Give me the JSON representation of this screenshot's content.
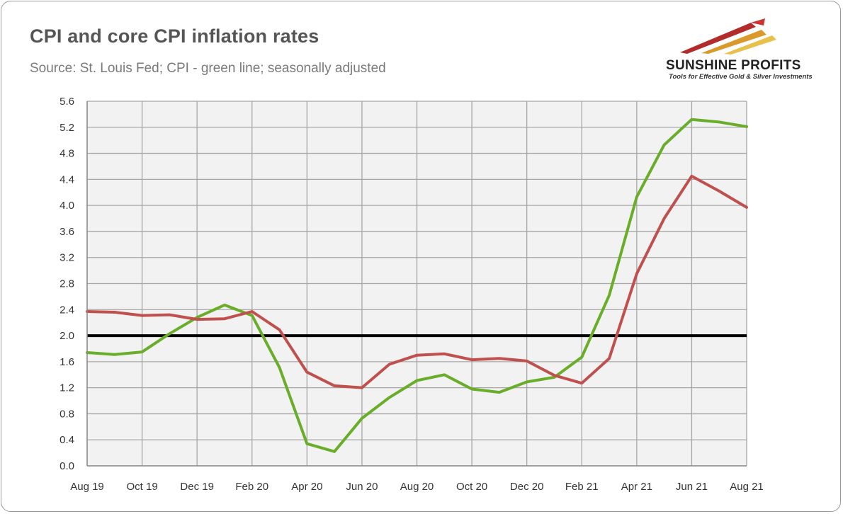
{
  "header": {
    "title": "CPI and core CPI inflation rates",
    "subtitle": "Source: St. Louis Fed; CPI - green line; seasonally adjusted"
  },
  "logo": {
    "name": "SUNSHINE PROFITS",
    "tagline": "Tools for Effective Gold & Silver Investments"
  },
  "chart_data": {
    "type": "line",
    "title": "CPI and core CPI inflation rates",
    "subtitle": "Source: St. Louis Fed; CPI - green line; seasonally adjusted",
    "xlabel": "",
    "ylabel": "",
    "x": [
      "Aug 19",
      "Sep 19",
      "Oct 19",
      "Nov 19",
      "Dec 19",
      "Jan 20",
      "Feb 20",
      "Mar 20",
      "Apr 20",
      "May 20",
      "Jun 20",
      "Jul 20",
      "Aug 20",
      "Sep 20",
      "Oct 20",
      "Nov 20",
      "Dec 20",
      "Jan 21",
      "Feb 21",
      "Mar 21",
      "Apr 21",
      "May 21",
      "Jun 21",
      "Jul 21",
      "Aug 21"
    ],
    "x_tick_labels": [
      "Aug 19",
      "Oct 19",
      "Dec 19",
      "Feb 20",
      "Apr 20",
      "Jun 20",
      "Aug 20",
      "Oct 20",
      "Dec 20",
      "Feb 21",
      "Apr 21",
      "Jun 21",
      "Aug 21"
    ],
    "y_ticks": [
      "0.0",
      "0.4",
      "0.8",
      "1.2",
      "1.6",
      "2.0",
      "2.4",
      "2.8",
      "3.2",
      "3.6",
      "4.0",
      "4.4",
      "4.8",
      "5.2",
      "5.6"
    ],
    "ylim": [
      0,
      5.6
    ],
    "grid": true,
    "reference_line": {
      "value": 2.0,
      "color": "#000000"
    },
    "series": [
      {
        "color": "#6aad2a",
        "values": [
          1.74,
          1.71,
          1.75,
          2.03,
          2.28,
          2.47,
          2.31,
          1.51,
          0.34,
          0.22,
          0.73,
          1.05,
          1.31,
          1.4,
          1.18,
          1.13,
          1.29,
          1.36,
          1.67,
          2.62,
          4.13,
          4.93,
          5.32,
          5.28,
          5.21
        ]
      },
      {
        "color": "#c0504d",
        "values": [
          2.37,
          2.36,
          2.31,
          2.32,
          2.25,
          2.26,
          2.37,
          2.09,
          1.44,
          1.23,
          1.2,
          1.56,
          1.7,
          1.72,
          1.63,
          1.65,
          1.61,
          1.39,
          1.27,
          1.65,
          2.95,
          3.8,
          4.45,
          4.22,
          3.97
        ]
      }
    ]
  },
  "colors": {
    "grid": "#a6a6a6",
    "plot_background": "#f2f2f2",
    "text": "#333333"
  }
}
